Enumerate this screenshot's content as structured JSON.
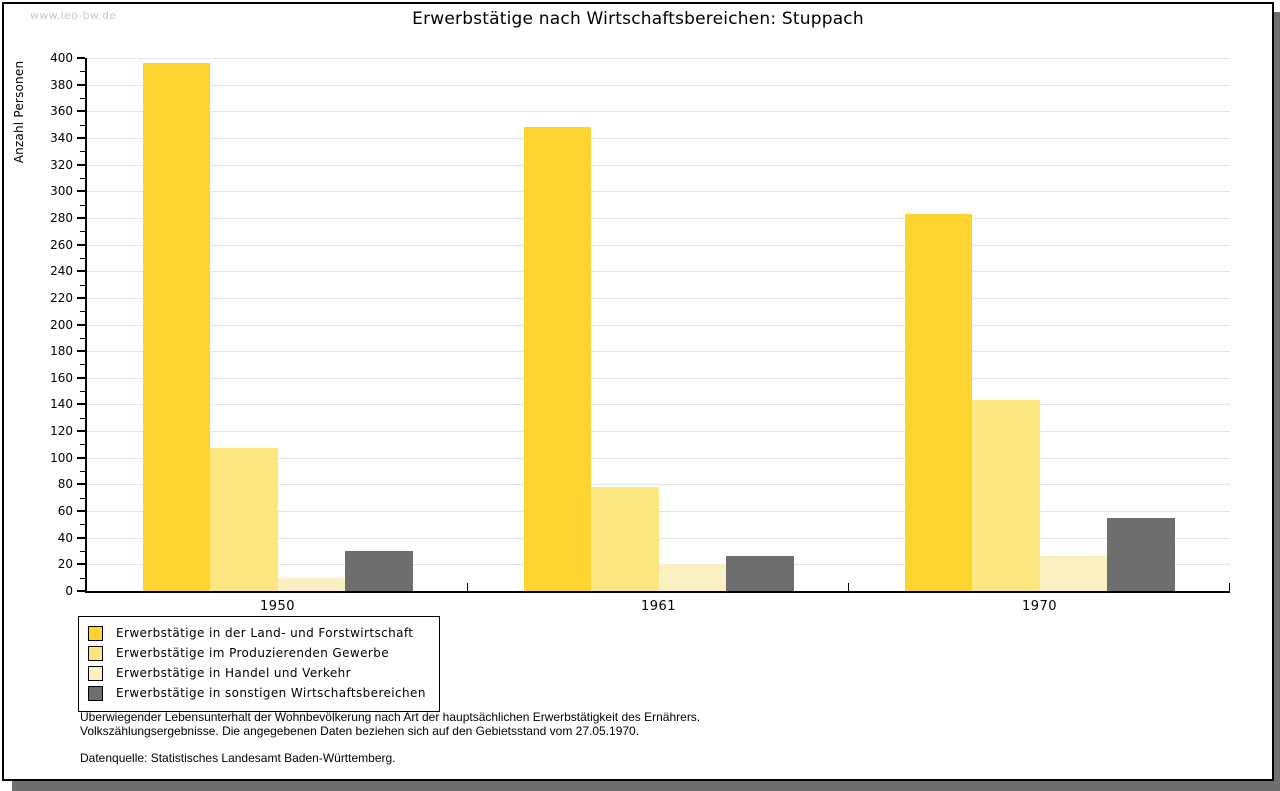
{
  "watermark": "www.leo-bw.de",
  "header": {
    "title": "Erwerbstätige nach Wirtschaftsbereichen: Stuppach"
  },
  "chart_data": {
    "type": "bar",
    "title": "Erwerbstätige nach Wirtschaftsbereichen: Stuppach",
    "xlabel": "",
    "ylabel": "Anzahl Personen",
    "categories": [
      "1950",
      "1961",
      "1970"
    ],
    "series": [
      {
        "name": "Erwerbstätige in der Land- und Forstwirtschaft",
        "color": "#fcd32f",
        "values": [
          396,
          348,
          283
        ]
      },
      {
        "name": "Erwerbstätige im Produzierenden Gewerbe",
        "color": "#fbe77d",
        "values": [
          107,
          78,
          143
        ]
      },
      {
        "name": "Erwerbstätige in Handel und Verkehr",
        "color": "#faf0c1",
        "values": [
          10,
          20,
          26
        ]
      },
      {
        "name": "Erwerbstätige in sonstigen Wirtschaftsbereichen",
        "color": "#6e6e6e",
        "values": [
          30,
          26,
          55
        ]
      }
    ],
    "ylim": [
      0,
      400
    ],
    "ytick_step": 20,
    "ytick_minor_step": 10,
    "grid": true,
    "legend_position": "bottom-left"
  },
  "footnotes": {
    "line1": "Überwiegender Lebensunterhalt der Wohnbevölkerung nach Art der hauptsächlichen Erwerbstätigkeit des Ernährers.",
    "line2": "Volkszählungsergebnisse. Die angegebenen Daten beziehen sich auf den Gebietsstand vom 27.05.1970.",
    "source": "Datenquelle: Statistisches Landesamt Baden-Württemberg."
  }
}
